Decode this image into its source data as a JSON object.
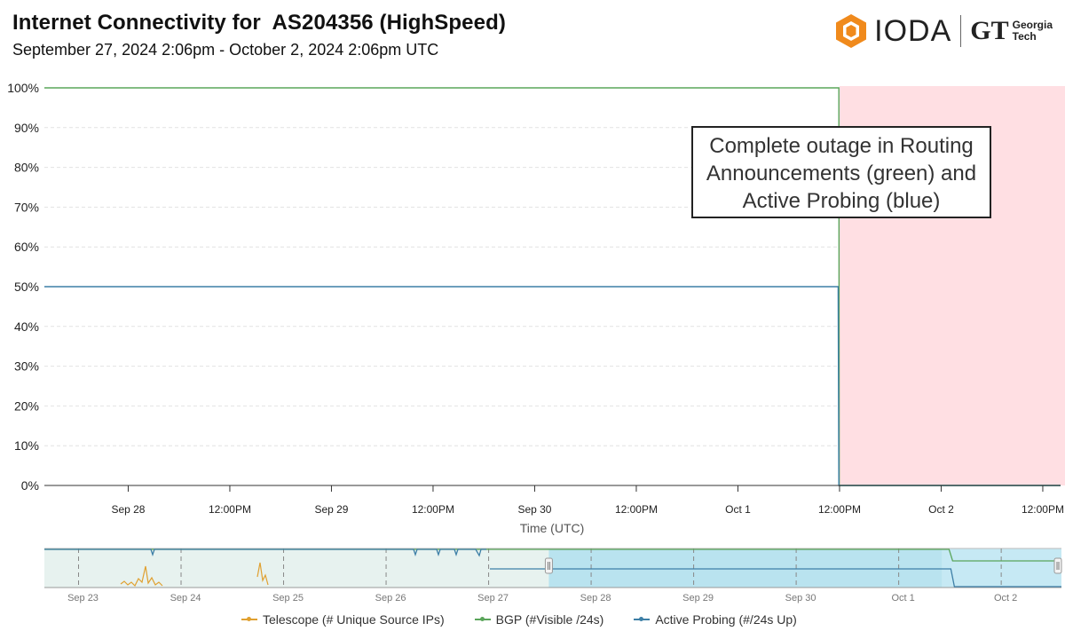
{
  "header": {
    "title": "Internet Connectivity for  AS204356 (HighSpeed)",
    "subtitle": "September 27, 2024 2:06pm - October 2, 2024 2:06pm UTC"
  },
  "logos": {
    "ioda": "IODA",
    "gt_mark": "GT",
    "gt_line1": "Georgia",
    "gt_line2": "Tech"
  },
  "annotation": {
    "lines": [
      "Complete outage in Routing",
      "Announcements (green) and",
      "Active Probing (blue)"
    ]
  },
  "colors": {
    "bgp": "#5aa55a",
    "active_probing": "#3d7fa6",
    "telescope": "#e0a030",
    "outage": "#ffdfe3",
    "navigator_selection": "#b9e3ef",
    "navigator_bg": "#e7f2ef"
  },
  "chart_data": [
    {
      "type": "line",
      "xlabel": "Time (UTC)",
      "ylabel": "",
      "x_range": [
        "2024-09-27 14:06",
        "2024-10-02 14:06"
      ],
      "ylim": [
        0,
        100
      ],
      "y_ticks": [
        "0%",
        "10%",
        "20%",
        "30%",
        "40%",
        "50%",
        "60%",
        "70%",
        "80%",
        "90%",
        "100%"
      ],
      "x_ticks": [
        "Sep 28",
        "12:00PM",
        "Sep 29",
        "12:00PM",
        "Sep 30",
        "12:00PM",
        "Oct 1",
        "12:00PM",
        "Oct 2",
        "12:00PM"
      ],
      "x_tick_times": [
        "2024-09-28 00:00",
        "2024-09-28 12:00",
        "2024-09-29 00:00",
        "2024-09-29 12:00",
        "2024-09-30 00:00",
        "2024-09-30 12:00",
        "2024-10-01 00:00",
        "2024-10-01 12:00",
        "2024-10-02 00:00",
        "2024-10-02 12:00"
      ],
      "grid": true,
      "series": [
        {
          "name": "BGP (#Visible /24s)",
          "color": "#5aa55a",
          "x": [
            "2024-09-27 14:06",
            "2024-10-01 11:55",
            "2024-10-01 11:58",
            "2024-10-02 14:06"
          ],
          "values": [
            100,
            100,
            0,
            0
          ]
        },
        {
          "name": "Active Probing (#/24s Up)",
          "color": "#3d7fa6",
          "x": [
            "2024-09-27 14:06",
            "2024-10-01 11:50",
            "2024-10-01 11:55",
            "2024-10-02 14:06"
          ],
          "values": [
            50,
            50,
            0,
            0
          ]
        }
      ],
      "outage_region": [
        "2024-10-01 12:00",
        "2024-10-02 14:06"
      ]
    },
    {
      "type": "line",
      "role": "time navigator",
      "x_ticks": [
        "Sep 23",
        "Sep 24",
        "Sep 25",
        "Sep 26",
        "Sep 27",
        "Sep 28",
        "Sep 29",
        "Sep 30",
        "Oct 1",
        "Oct 2"
      ],
      "x_range": [
        "2024-09-22 16:00",
        "2024-10-02 14:06"
      ],
      "selection": [
        "2024-09-27 14:06",
        "2024-10-02 14:06"
      ],
      "legend_position": "bottom",
      "legend": [
        "Telescope (# Unique Source IPs)",
        "BGP (#Visible /24s)",
        "Active Probing (#/24s Up)"
      ]
    }
  ]
}
